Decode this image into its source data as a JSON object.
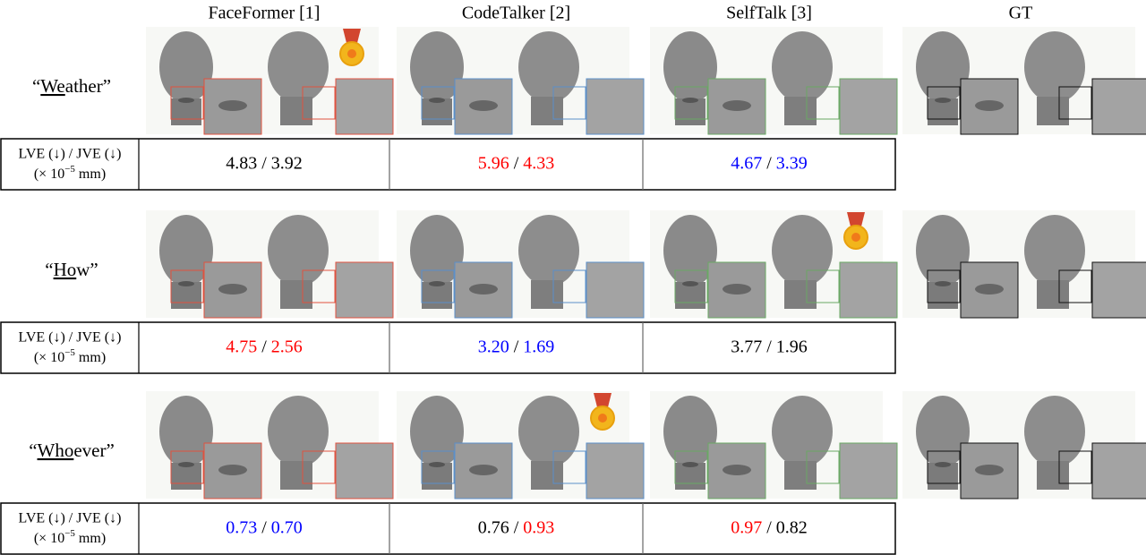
{
  "columns": [
    {
      "name": "FaceFormer [1]",
      "box_color": "#e0523f"
    },
    {
      "name": "CodeTalker [2]",
      "box_color": "#5b8fc9"
    },
    {
      "name": "SelfTalk [3]",
      "box_color": "#6aa864"
    },
    {
      "name": "GT",
      "box_color": "#111111"
    }
  ],
  "metric_label": {
    "line1": "LVE (↓) / JVE (↓)",
    "line2_prefix": "(× 10",
    "exponent": "−5",
    "line2_suffix": " mm)"
  },
  "separator": " / ",
  "rows": [
    {
      "word_prefix": "“",
      "word_underlined": "We",
      "word_suffix": "ather”",
      "medal_column": 0,
      "results": [
        {
          "lve": "4.83",
          "lve_color": "#000000",
          "jve": "3.92",
          "jve_color": "#000000"
        },
        {
          "lve": "5.96",
          "lve_color": "#ff0000",
          "jve": "4.33",
          "jve_color": "#ff0000"
        },
        {
          "lve": "4.67",
          "lve_color": "#0000ff",
          "jve": "3.39",
          "jve_color": "#0000ff"
        }
      ]
    },
    {
      "word_prefix": "“",
      "word_underlined": "Ho",
      "word_suffix": "w”",
      "medal_column": 2,
      "results": [
        {
          "lve": "4.75",
          "lve_color": "#ff0000",
          "jve": "2.56",
          "jve_color": "#ff0000"
        },
        {
          "lve": "3.20",
          "lve_color": "#0000ff",
          "jve": "1.69",
          "jve_color": "#0000ff"
        },
        {
          "lve": "3.77",
          "lve_color": "#000000",
          "jve": "1.96",
          "jve_color": "#000000"
        }
      ]
    },
    {
      "word_prefix": "“",
      "word_underlined": "Who",
      "word_suffix": "ever”",
      "medal_column": 1,
      "results": [
        {
          "lve": "0.73",
          "lve_color": "#0000ff",
          "jve": "0.70",
          "jve_color": "#0000ff"
        },
        {
          "lve": "0.76",
          "lve_color": "#000000",
          "jve": "0.93",
          "jve_color": "#ff0000"
        },
        {
          "lve": "0.97",
          "lve_color": "#ff0000",
          "jve": "0.82",
          "jve_color": "#000000"
        }
      ]
    }
  ]
}
